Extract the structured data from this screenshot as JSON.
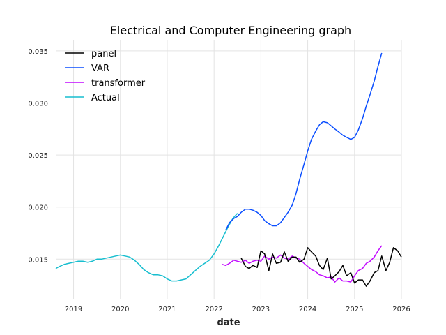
{
  "chart_data": {
    "type": "line",
    "title": "Electrical and Computer Engineering graph",
    "xlabel": "date",
    "ylabel": "",
    "xlim": [
      2018.62,
      2026.0
    ],
    "ylim": [
      0.0112,
      0.036
    ],
    "x_ticks": [
      2019,
      2020,
      2021,
      2022,
      2023,
      2024,
      2025,
      2026
    ],
    "y_ticks": [
      0.015,
      0.02,
      0.025,
      0.03,
      0.035
    ],
    "y_tick_labels": [
      "0.015",
      "0.020",
      "0.025",
      "0.030",
      "0.035"
    ],
    "grid": true,
    "legend_position": "top-left",
    "series": [
      {
        "name": "panel",
        "color": "#000000",
        "points": [
          [
            2022.58,
            0.0151
          ],
          [
            2022.67,
            0.0143
          ],
          [
            2022.75,
            0.0141
          ],
          [
            2022.83,
            0.0144
          ],
          [
            2022.92,
            0.0142
          ],
          [
            2023.0,
            0.0158
          ],
          [
            2023.08,
            0.0155
          ],
          [
            2023.17,
            0.0139
          ],
          [
            2023.25,
            0.0155
          ],
          [
            2023.33,
            0.0146
          ],
          [
            2023.42,
            0.0147
          ],
          [
            2023.5,
            0.0157
          ],
          [
            2023.58,
            0.0148
          ],
          [
            2023.67,
            0.0152
          ],
          [
            2023.75,
            0.0152
          ],
          [
            2023.83,
            0.0147
          ],
          [
            2023.92,
            0.015
          ],
          [
            2024.0,
            0.0161
          ],
          [
            2024.08,
            0.0157
          ],
          [
            2024.17,
            0.0153
          ],
          [
            2024.25,
            0.0144
          ],
          [
            2024.33,
            0.014
          ],
          [
            2024.42,
            0.0151
          ],
          [
            2024.5,
            0.0131
          ],
          [
            2024.58,
            0.0134
          ],
          [
            2024.67,
            0.0138
          ],
          [
            2024.75,
            0.0144
          ],
          [
            2024.83,
            0.0134
          ],
          [
            2024.92,
            0.0137
          ],
          [
            2025.0,
            0.0127
          ],
          [
            2025.08,
            0.013
          ],
          [
            2025.17,
            0.013
          ],
          [
            2025.25,
            0.0124
          ],
          [
            2025.33,
            0.0129
          ],
          [
            2025.42,
            0.0137
          ],
          [
            2025.5,
            0.0139
          ],
          [
            2025.58,
            0.0153
          ],
          [
            2025.67,
            0.0139
          ],
          [
            2025.75,
            0.0147
          ],
          [
            2025.83,
            0.0161
          ],
          [
            2025.92,
            0.0158
          ],
          [
            2026.0,
            0.0152
          ]
        ]
      },
      {
        "name": "VAR",
        "color": "#0a4eff",
        "points": [
          [
            2022.25,
            0.0178
          ],
          [
            2022.33,
            0.0185
          ],
          [
            2022.42,
            0.0189
          ],
          [
            2022.5,
            0.0191
          ],
          [
            2022.58,
            0.0195
          ],
          [
            2022.67,
            0.0198
          ],
          [
            2022.75,
            0.0198
          ],
          [
            2022.83,
            0.0197
          ],
          [
            2022.92,
            0.0195
          ],
          [
            2023.0,
            0.0192
          ],
          [
            2023.08,
            0.0187
          ],
          [
            2023.17,
            0.0184
          ],
          [
            2023.25,
            0.0182
          ],
          [
            2023.33,
            0.0182
          ],
          [
            2023.42,
            0.0185
          ],
          [
            2023.5,
            0.019
          ],
          [
            2023.58,
            0.0195
          ],
          [
            2023.67,
            0.0202
          ],
          [
            2023.75,
            0.0213
          ],
          [
            2023.83,
            0.0227
          ],
          [
            2023.92,
            0.0241
          ],
          [
            2024.0,
            0.0254
          ],
          [
            2024.08,
            0.0265
          ],
          [
            2024.17,
            0.0273
          ],
          [
            2024.25,
            0.0279
          ],
          [
            2024.33,
            0.0282
          ],
          [
            2024.42,
            0.0281
          ],
          [
            2024.5,
            0.0278
          ],
          [
            2024.58,
            0.0275
          ],
          [
            2024.67,
            0.0272
          ],
          [
            2024.75,
            0.0269
          ],
          [
            2024.83,
            0.0267
          ],
          [
            2024.92,
            0.0265
          ],
          [
            2025.0,
            0.0267
          ],
          [
            2025.08,
            0.0274
          ],
          [
            2025.17,
            0.0285
          ],
          [
            2025.25,
            0.0297
          ],
          [
            2025.33,
            0.0308
          ],
          [
            2025.42,
            0.0321
          ],
          [
            2025.5,
            0.0335
          ],
          [
            2025.58,
            0.0348
          ]
        ]
      },
      {
        "name": "transformer",
        "color": "#c20aff",
        "points": [
          [
            2022.17,
            0.0145
          ],
          [
            2022.25,
            0.0144
          ],
          [
            2022.33,
            0.0146
          ],
          [
            2022.42,
            0.0149
          ],
          [
            2022.5,
            0.0148
          ],
          [
            2022.58,
            0.0147
          ],
          [
            2022.67,
            0.0149
          ],
          [
            2022.75,
            0.0146
          ],
          [
            2022.83,
            0.0148
          ],
          [
            2022.92,
            0.0149
          ],
          [
            2023.0,
            0.0148
          ],
          [
            2023.08,
            0.0153
          ],
          [
            2023.17,
            0.015
          ],
          [
            2023.25,
            0.0152
          ],
          [
            2023.33,
            0.0151
          ],
          [
            2023.42,
            0.0154
          ],
          [
            2023.5,
            0.0151
          ],
          [
            2023.58,
            0.015
          ],
          [
            2023.67,
            0.0153
          ],
          [
            2023.75,
            0.0151
          ],
          [
            2023.83,
            0.015
          ],
          [
            2023.92,
            0.0146
          ],
          [
            2024.0,
            0.0143
          ],
          [
            2024.08,
            0.014
          ],
          [
            2024.17,
            0.0138
          ],
          [
            2024.25,
            0.0135
          ],
          [
            2024.33,
            0.0134
          ],
          [
            2024.42,
            0.0132
          ],
          [
            2024.5,
            0.0133
          ],
          [
            2024.58,
            0.0128
          ],
          [
            2024.67,
            0.0132
          ],
          [
            2024.75,
            0.0129
          ],
          [
            2024.83,
            0.0129
          ],
          [
            2024.92,
            0.0128
          ],
          [
            2025.0,
            0.0134
          ],
          [
            2025.08,
            0.0139
          ],
          [
            2025.17,
            0.0141
          ],
          [
            2025.25,
            0.0146
          ],
          [
            2025.33,
            0.0148
          ],
          [
            2025.42,
            0.0152
          ],
          [
            2025.5,
            0.0158
          ],
          [
            2025.58,
            0.0163
          ]
        ]
      },
      {
        "name": "Actual",
        "color": "#17becf",
        "points": [
          [
            2018.62,
            0.0141
          ],
          [
            2018.7,
            0.0143
          ],
          [
            2018.8,
            0.0145
          ],
          [
            2018.9,
            0.0146
          ],
          [
            2019.0,
            0.0147
          ],
          [
            2019.1,
            0.0148
          ],
          [
            2019.2,
            0.0148
          ],
          [
            2019.3,
            0.0147
          ],
          [
            2019.4,
            0.0148
          ],
          [
            2019.5,
            0.015
          ],
          [
            2019.6,
            0.015
          ],
          [
            2019.7,
            0.0151
          ],
          [
            2019.8,
            0.0152
          ],
          [
            2019.9,
            0.0153
          ],
          [
            2020.0,
            0.0154
          ],
          [
            2020.1,
            0.0153
          ],
          [
            2020.2,
            0.0152
          ],
          [
            2020.3,
            0.0149
          ],
          [
            2020.4,
            0.0145
          ],
          [
            2020.5,
            0.014
          ],
          [
            2020.6,
            0.0137
          ],
          [
            2020.7,
            0.0135
          ],
          [
            2020.8,
            0.0135
          ],
          [
            2020.9,
            0.0134
          ],
          [
            2021.0,
            0.0131
          ],
          [
            2021.1,
            0.0129
          ],
          [
            2021.2,
            0.0129
          ],
          [
            2021.3,
            0.013
          ],
          [
            2021.4,
            0.0131
          ],
          [
            2021.5,
            0.0135
          ],
          [
            2021.6,
            0.0139
          ],
          [
            2021.7,
            0.0143
          ],
          [
            2021.8,
            0.0146
          ],
          [
            2021.9,
            0.0149
          ],
          [
            2022.0,
            0.0155
          ],
          [
            2022.1,
            0.0163
          ],
          [
            2022.2,
            0.0172
          ],
          [
            2022.3,
            0.0181
          ],
          [
            2022.4,
            0.0189
          ],
          [
            2022.5,
            0.0194
          ]
        ]
      }
    ]
  }
}
